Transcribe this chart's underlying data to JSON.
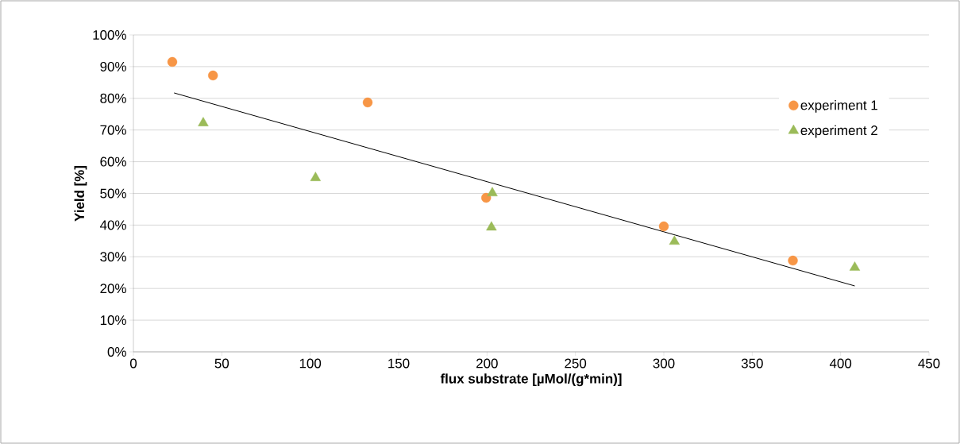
{
  "chart_data": {
    "type": "scatter",
    "xlabel": "flux substrate [µMol/(g*min)]",
    "ylabel": "Yield [%]",
    "xlim": [
      0,
      450
    ],
    "xticks": [
      0,
      50,
      100,
      150,
      200,
      250,
      300,
      350,
      400,
      450
    ],
    "ylim": [
      0,
      100
    ],
    "yticks": [
      {
        "value": 0,
        "label": "0%"
      },
      {
        "value": 10,
        "label": "10%"
      },
      {
        "value": 20,
        "label": "20%"
      },
      {
        "value": 30,
        "label": "30%"
      },
      {
        "value": 40,
        "label": "40%"
      },
      {
        "value": 50,
        "label": "50%"
      },
      {
        "value": 60,
        "label": "60%"
      },
      {
        "value": 70,
        "label": "70%"
      },
      {
        "value": 80,
        "label": "80%"
      },
      {
        "value": 90,
        "label": "90%"
      },
      {
        "value": 100,
        "label": "100%"
      }
    ],
    "grid": "y",
    "legend": "top right",
    "series": [
      {
        "name": "experiment 1",
        "marker": "circle",
        "color": "#f79646",
        "x": [
          22,
          45,
          132.5,
          199.5,
          300,
          373
        ],
        "values": [
          91.5,
          87.2,
          78.7,
          48.6,
          39.6,
          28.8
        ]
      },
      {
        "name": "experiment 2",
        "marker": "triangle",
        "color": "#9bbb59",
        "x": [
          39.5,
          103,
          203,
          202.5,
          306,
          408
        ],
        "values": [
          72.2,
          54.9,
          50.1,
          39.3,
          34.8,
          26.6
        ]
      },
      {
        "type": "line",
        "color": "#000000",
        "x": [
          23,
          408
        ],
        "values": [
          81.7,
          20.8
        ]
      }
    ]
  }
}
